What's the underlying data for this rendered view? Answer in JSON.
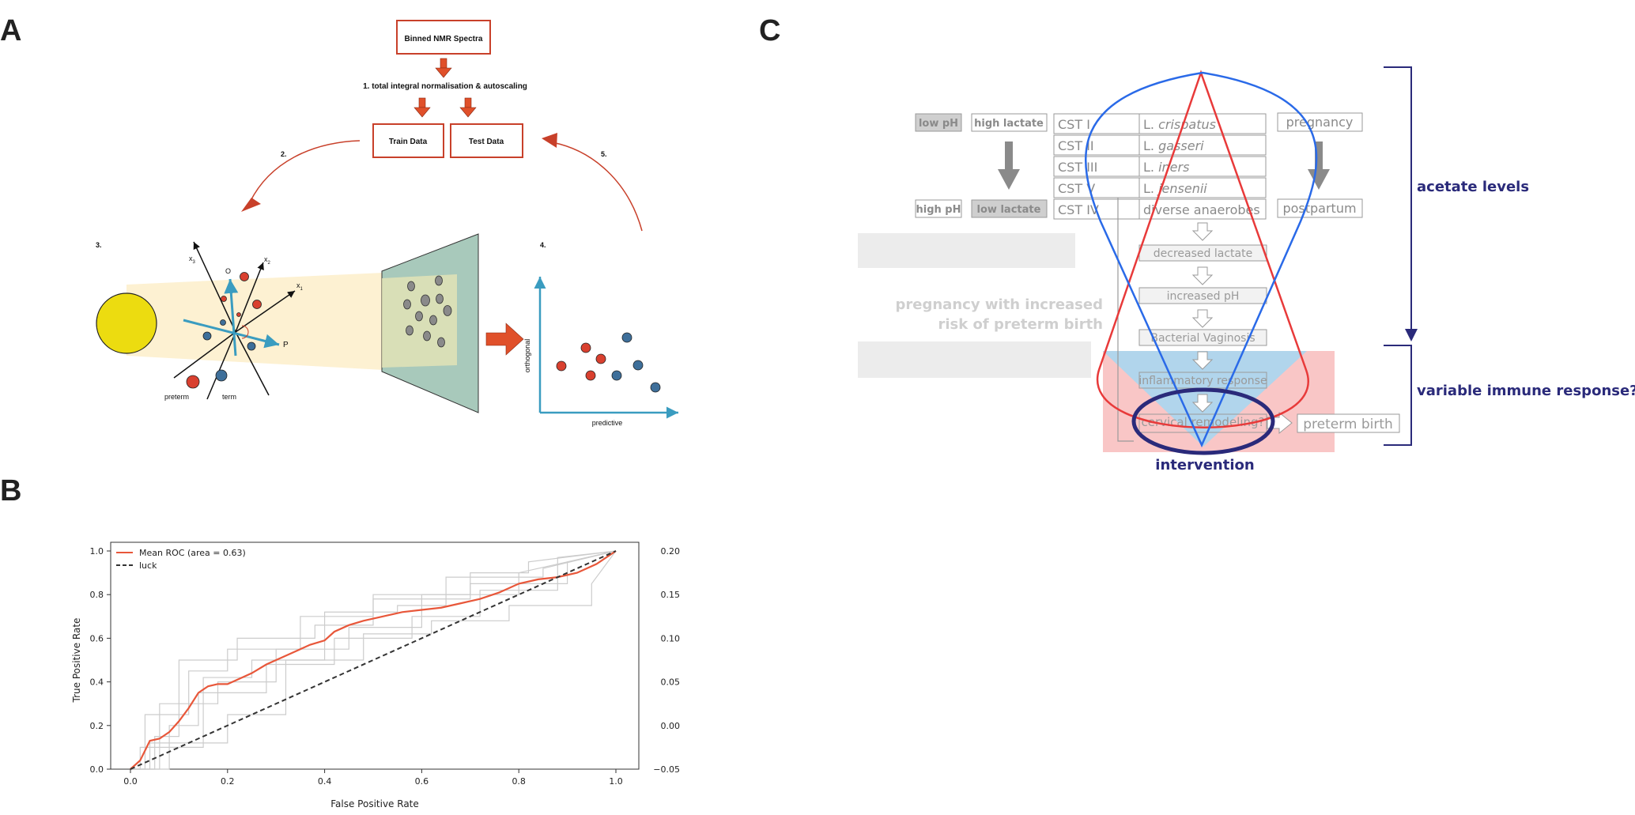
{
  "panels": {
    "a": "A",
    "b": "B",
    "c": "C"
  },
  "panel_a": {
    "binned": "Binned NMR Spectra",
    "step1": "1. total integral normalisation & autoscaling",
    "train": "Train Data",
    "test": "Test Data",
    "step2": "2.",
    "step3": "3.",
    "step4": "4.",
    "step5": "5.",
    "axis_x1": "x",
    "axis_x1_sub": "1",
    "axis_x2": "x",
    "axis_x2_sub": "2",
    "axis_x3": "x",
    "axis_x3_sub": "3",
    "axis_o": "O",
    "axis_p": "P",
    "preterm": "preterm",
    "term": "term",
    "orthogonal": "orthogonal",
    "predictive": "predictive",
    "colors": {
      "red": "#d9402f",
      "blue": "#3e6f9a",
      "teal": "#3a9cc0",
      "arrow": "#e0502a",
      "box": "#c8402a"
    }
  },
  "panel_b": {
    "xlabel": "False Positive Rate",
    "ylabel": "True Positive Rate",
    "legend_mean": "Mean ROC (area = 0.63)",
    "legend_luck": "luck",
    "xticks": [
      "0.0",
      "0.2",
      "0.4",
      "0.6",
      "0.8",
      "1.0"
    ],
    "yticks": [
      "0.0",
      "0.2",
      "0.4",
      "0.6",
      "0.8",
      "1.0"
    ],
    "y2ticks": [
      "−0.05",
      "0.00",
      "0.05",
      "0.10",
      "0.15",
      "0.20"
    ]
  },
  "chart_data": {
    "type": "line",
    "title": "",
    "xlabel": "False Positive Rate",
    "ylabel": "True Positive Rate",
    "xlim": [
      0,
      1
    ],
    "ylim": [
      0,
      1
    ],
    "y2lim": [
      -0.05,
      0.2
    ],
    "legend_placement": "top-left",
    "grid": false,
    "series": [
      {
        "name": "Mean ROC (area = 0.63)",
        "color": "#e8573a",
        "x": [
          0.0,
          0.02,
          0.04,
          0.06,
          0.08,
          0.1,
          0.12,
          0.14,
          0.16,
          0.18,
          0.2,
          0.22,
          0.25,
          0.28,
          0.31,
          0.34,
          0.37,
          0.4,
          0.42,
          0.45,
          0.48,
          0.52,
          0.56,
          0.6,
          0.64,
          0.68,
          0.72,
          0.76,
          0.8,
          0.84,
          0.88,
          0.92,
          0.96,
          1.0
        ],
        "y": [
          0.0,
          0.04,
          0.13,
          0.14,
          0.17,
          0.22,
          0.28,
          0.35,
          0.38,
          0.39,
          0.39,
          0.41,
          0.44,
          0.48,
          0.51,
          0.54,
          0.57,
          0.59,
          0.63,
          0.66,
          0.68,
          0.7,
          0.72,
          0.73,
          0.74,
          0.76,
          0.78,
          0.81,
          0.85,
          0.87,
          0.88,
          0.9,
          0.94,
          1.0
        ]
      },
      {
        "name": "luck",
        "color": "#333333",
        "x": [
          0.0,
          1.0
        ],
        "y": [
          0.0,
          1.0
        ]
      }
    ],
    "folds": [
      {
        "x": [
          0,
          0.03,
          0.03,
          0.12,
          0.12,
          0.2,
          0.2,
          0.35,
          0.35,
          0.5,
          0.5,
          0.7,
          0.7,
          0.9,
          0.9,
          1.0
        ],
        "y": [
          0,
          0,
          0.25,
          0.25,
          0.45,
          0.45,
          0.55,
          0.55,
          0.7,
          0.7,
          0.78,
          0.78,
          0.85,
          0.85,
          0.95,
          1.0
        ]
      },
      {
        "x": [
          0,
          0.05,
          0.05,
          0.1,
          0.1,
          0.18,
          0.18,
          0.3,
          0.3,
          0.45,
          0.45,
          0.6,
          0.6,
          0.8,
          0.8,
          1.0
        ],
        "y": [
          0,
          0,
          0.15,
          0.15,
          0.3,
          0.3,
          0.4,
          0.4,
          0.55,
          0.55,
          0.65,
          0.65,
          0.8,
          0.8,
          0.9,
          1.0
        ]
      },
      {
        "x": [
          0,
          0.02,
          0.02,
          0.15,
          0.15,
          0.25,
          0.25,
          0.4,
          0.4,
          0.55,
          0.55,
          0.65,
          0.65,
          0.85,
          0.85,
          1.0
        ],
        "y": [
          0,
          0,
          0.1,
          0.1,
          0.42,
          0.42,
          0.5,
          0.5,
          0.72,
          0.72,
          0.75,
          0.75,
          0.88,
          0.88,
          0.92,
          1.0
        ]
      },
      {
        "x": [
          0,
          0.08,
          0.08,
          0.14,
          0.14,
          0.28,
          0.28,
          0.42,
          0.42,
          0.58,
          0.58,
          0.72,
          0.72,
          0.88,
          0.88,
          1.0
        ],
        "y": [
          0,
          0,
          0.2,
          0.2,
          0.35,
          0.35,
          0.48,
          0.48,
          0.6,
          0.6,
          0.7,
          0.7,
          0.82,
          0.82,
          0.97,
          1.0
        ]
      },
      {
        "x": [
          0,
          0.04,
          0.04,
          0.2,
          0.2,
          0.32,
          0.32,
          0.48,
          0.48,
          0.62,
          0.62,
          0.78,
          0.78,
          0.95,
          0.95,
          1.0
        ],
        "y": [
          0,
          0,
          0.12,
          0.12,
          0.25,
          0.25,
          0.5,
          0.5,
          0.62,
          0.62,
          0.68,
          0.68,
          0.75,
          0.75,
          0.85,
          1.0
        ]
      },
      {
        "x": [
          0,
          0.06,
          0.06,
          0.1,
          0.1,
          0.22,
          0.22,
          0.38,
          0.38,
          0.5,
          0.5,
          0.7,
          0.7,
          0.82,
          0.82,
          1.0
        ],
        "y": [
          0,
          0,
          0.3,
          0.3,
          0.5,
          0.5,
          0.6,
          0.6,
          0.66,
          0.66,
          0.8,
          0.8,
          0.9,
          0.9,
          0.95,
          1.0
        ]
      }
    ]
  },
  "panel_c": {
    "low_ph": "low pH",
    "high_lactate": "high lactate",
    "high_ph": "high pH",
    "low_lactate": "low lactate",
    "cst_rows": [
      {
        "cst": "CST I",
        "species_prefix": "L. ",
        "species": "crispatus"
      },
      {
        "cst": "CST II",
        "species_prefix": "L. ",
        "species": "gasseri"
      },
      {
        "cst": "CST III",
        "species_prefix": "L. ",
        "species": "iners"
      },
      {
        "cst": "CST V",
        "species_prefix": "L. ",
        "species": "jensenii"
      },
      {
        "cst": "CST IV",
        "species_prefix": "",
        "species": "diverse anaerobes"
      }
    ],
    "pregnancy": "pregnancy",
    "postpartum": "postpartum",
    "steps": [
      "decreased lactate",
      "increased pH",
      "Bacterial Vaginosis",
      "inflammatory response",
      "cervical remodeling?"
    ],
    "preterm_birth": "preterm birth",
    "risk_line1": "pregnancy with increased",
    "risk_line2": "risk of preterm birth",
    "intervention": "intervention",
    "acetate": "acetate levels",
    "immune": "variable immune response?",
    "colors": {
      "navy": "#2a2a7a",
      "red": "#e83a3a",
      "blue": "#2a6ae8",
      "grey": "#9a9a9a"
    }
  }
}
